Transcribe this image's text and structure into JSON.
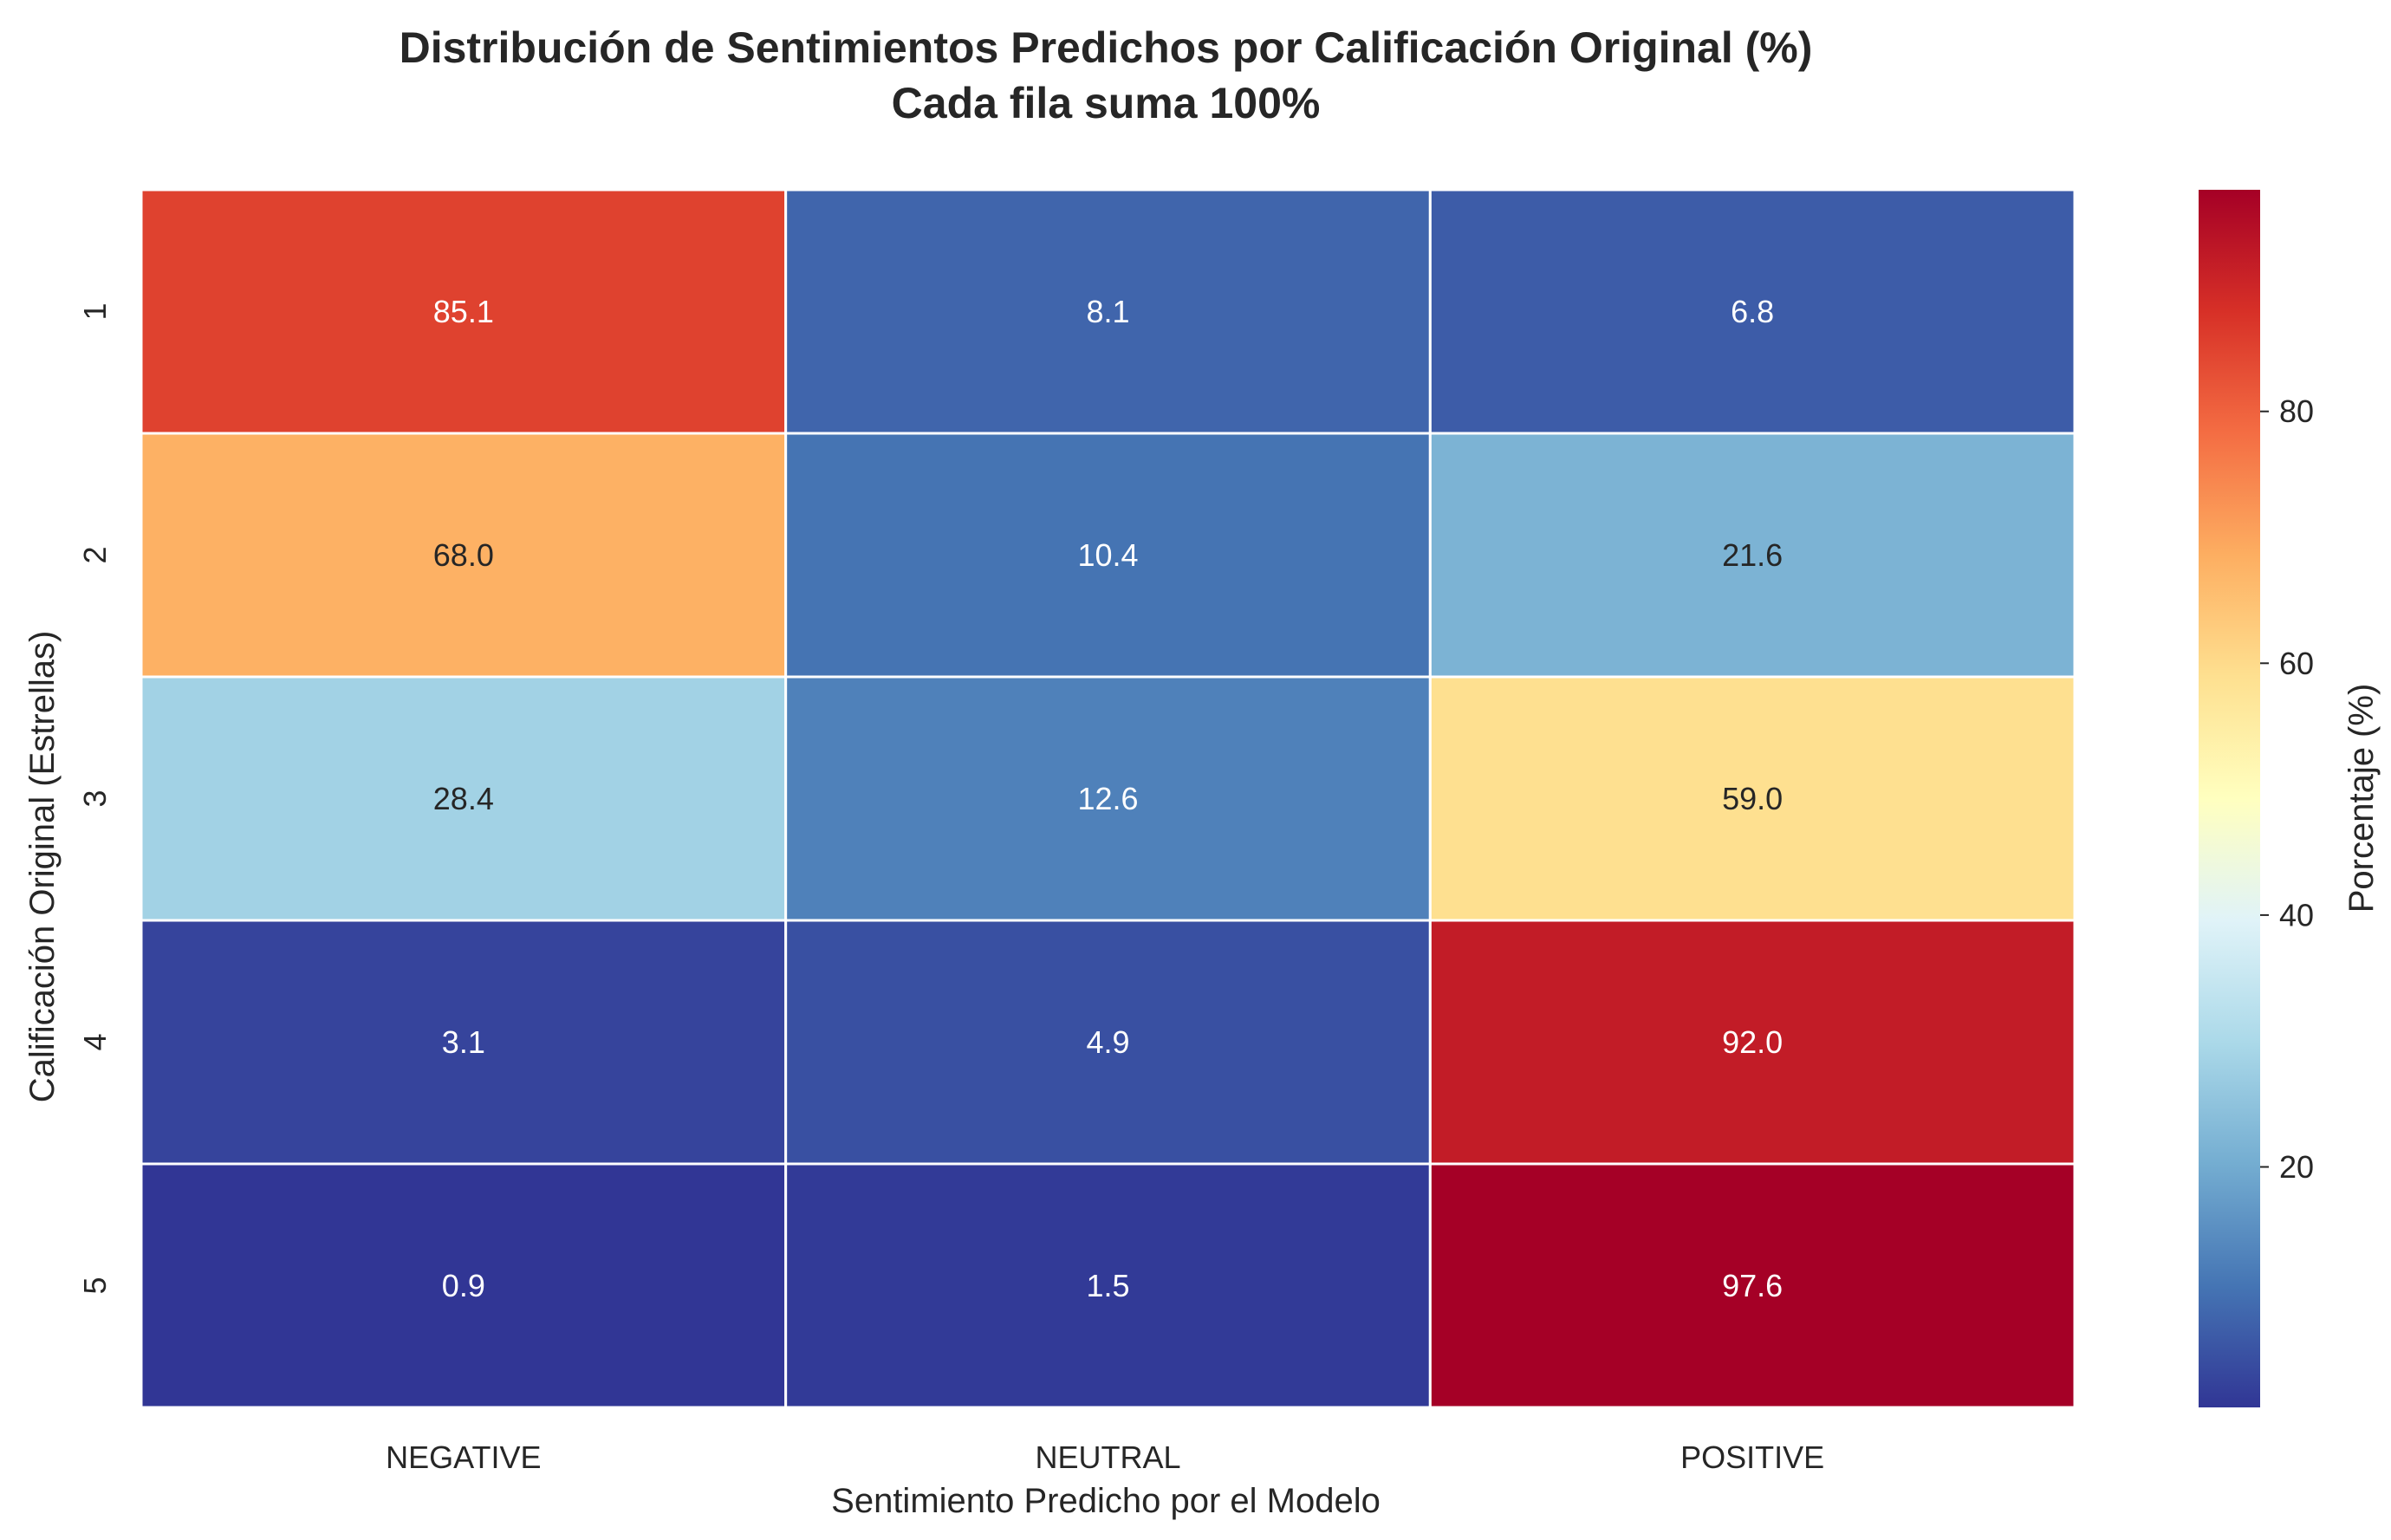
{
  "chart_data": {
    "type": "heatmap",
    "title": "Distribución de Sentimientos Predichos por Calificación Original (%)",
    "subtitle": "Cada fila suma 100%",
    "xlabel": "Sentimiento Predicho por el Modelo",
    "ylabel": "Calificación Original (Estrellas)",
    "x_categories": [
      "NEGATIVE",
      "NEUTRAL",
      "POSITIVE"
    ],
    "y_categories": [
      "1",
      "2",
      "3",
      "4",
      "5"
    ],
    "values": [
      [
        85.1,
        8.1,
        6.8
      ],
      [
        68.0,
        10.4,
        21.6
      ],
      [
        28.4,
        12.6,
        59.0
      ],
      [
        3.1,
        4.9,
        92.0
      ],
      [
        0.9,
        1.5,
        97.6
      ]
    ],
    "value_format": "0.0",
    "colormap": "RdYlBu_r",
    "colormap_stops": [
      "#313695",
      "#4575b4",
      "#74add1",
      "#abd9e9",
      "#e0f3f8",
      "#ffffbf",
      "#fee090",
      "#fdae61",
      "#f46d43",
      "#d73027",
      "#a50026"
    ],
    "color_range": [
      0.9,
      97.6
    ],
    "colorbar": {
      "label": "Porcentaje (%)",
      "ticks": [
        20,
        40,
        60,
        80
      ],
      "tick_labels": [
        "20",
        "40",
        "60",
        "80"
      ]
    },
    "grid": false,
    "cell_border_color": "#ffffff"
  }
}
